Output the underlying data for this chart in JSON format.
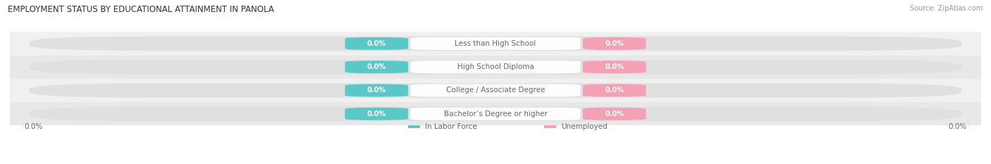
{
  "title": "EMPLOYMENT STATUS BY EDUCATIONAL ATTAINMENT IN PANOLA",
  "source": "Source: ZipAtlas.com",
  "categories": [
    "Less than High School",
    "High School Diploma",
    "College / Associate Degree",
    "Bachelor’s Degree or higher"
  ],
  "left_values": [
    "0.0%",
    "0.0%",
    "0.0%",
    "0.0%"
  ],
  "right_values": [
    "0.0%",
    "0.0%",
    "0.0%",
    "0.0%"
  ],
  "left_color": "#5bc8c8",
  "right_color": "#f4a0b5",
  "bar_bg_color": "#e0e0e0",
  "row_bg_even": "#f0f0f0",
  "row_bg_odd": "#e8e8e8",
  "label_bg_color": "#ffffff",
  "label_text_color": "#666666",
  "value_text_color": "#ffffff",
  "axis_label_left": "0.0%",
  "axis_label_right": "0.0%",
  "legend_left_label": "In Labor Force",
  "legend_right_label": "Unemployed",
  "title_fontsize": 8.5,
  "source_fontsize": 7,
  "cat_label_fontsize": 7.5,
  "value_fontsize": 7,
  "legend_fontsize": 7.5,
  "axis_tick_fontsize": 7.5
}
